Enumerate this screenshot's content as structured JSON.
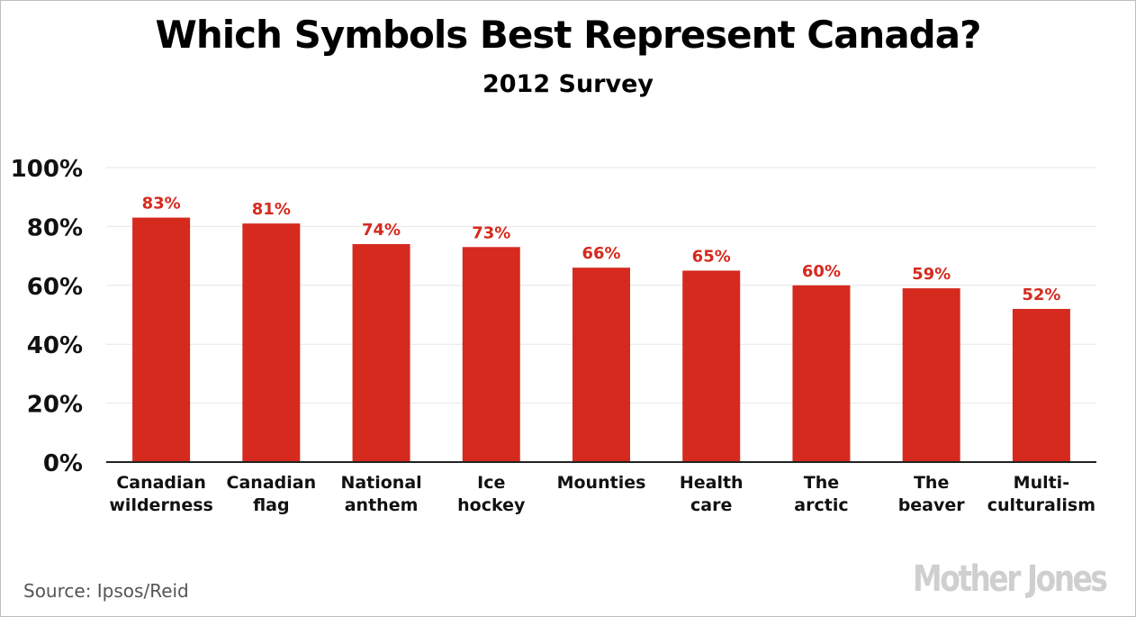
{
  "chart_data": {
    "type": "bar",
    "title": "Which Symbols Best Represent Canada?",
    "subtitle": "2012 Survey",
    "categories": [
      [
        "Canadian",
        "wilderness"
      ],
      [
        "Canadian",
        "flag"
      ],
      [
        "National",
        "anthem"
      ],
      [
        "Ice",
        "hockey"
      ],
      [
        "Mounties"
      ],
      [
        "Health",
        "care"
      ],
      [
        "The",
        "arctic"
      ],
      [
        "The",
        "beaver"
      ],
      [
        "Multi-",
        "culturalism"
      ]
    ],
    "values": [
      83,
      81,
      74,
      73,
      66,
      65,
      60,
      59,
      52
    ],
    "value_labels": [
      "83%",
      "81%",
      "74%",
      "73%",
      "66%",
      "65%",
      "60%",
      "59%",
      "52%"
    ],
    "yticks": [
      0,
      20,
      40,
      60,
      80,
      100
    ],
    "ytick_labels": [
      "0%",
      "20%",
      "40%",
      "60%",
      "80%",
      "100%"
    ],
    "ylim": [
      0,
      100
    ],
    "grid": true,
    "xlabel": "",
    "ylabel": "",
    "colors": {
      "bar": "#d62a1e",
      "value_label": "#d62a1e",
      "grid": "#e6e6e6",
      "axis": "#222222",
      "text": "#111111"
    }
  },
  "footer": {
    "source": "Source: Ipsos/Reid",
    "logo": "Mother Jones"
  }
}
